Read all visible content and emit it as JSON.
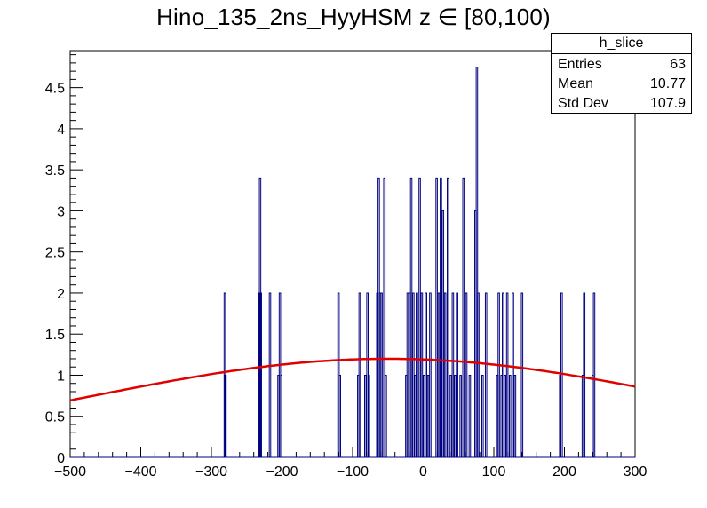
{
  "title": "Hino_135_2ns_HyyHSM z  ∈ [80,100)",
  "stats": {
    "name": "h_slice",
    "rows": [
      {
        "label": "Entries",
        "value": "63"
      },
      {
        "label": "Mean",
        "value": "10.77"
      },
      {
        "label": "Std Dev",
        "value": "107.9"
      }
    ]
  },
  "chart_data": {
    "type": "histogram",
    "xlim": [
      -500,
      300
    ],
    "ylim": [
      0,
      4.95
    ],
    "x_ticks": [
      -500,
      -400,
      -300,
      -200,
      -100,
      0,
      100,
      200,
      300
    ],
    "x_tick_labels": [
      "−500",
      "−400",
      "−300",
      "−200",
      "−100",
      "0",
      "100",
      "200",
      "300"
    ],
    "y_ticks": [
      0,
      0.5,
      1,
      1.5,
      2,
      2.5,
      3,
      3.5,
      4,
      4.5
    ],
    "y_tick_labels": [
      "0",
      "0.5",
      "1",
      "1.5",
      "2",
      "2.5",
      "3",
      "3.5",
      "4",
      "4.5"
    ],
    "histogram_color": "#000080",
    "fit_color": "#e00000",
    "bin_width": 2,
    "bins": [
      {
        "x": -282,
        "y": 2
      },
      {
        "x": -281,
        "y": 1
      },
      {
        "x": -233,
        "y": 2
      },
      {
        "x": -232,
        "y": 3.4
      },
      {
        "x": -231,
        "y": 2
      },
      {
        "x": -218,
        "y": 2
      },
      {
        "x": -206,
        "y": 1
      },
      {
        "x": -204,
        "y": 2
      },
      {
        "x": -202,
        "y": 1
      },
      {
        "x": -121,
        "y": 2
      },
      {
        "x": -119,
        "y": 1
      },
      {
        "x": -93,
        "y": 1
      },
      {
        "x": -91,
        "y": 2
      },
      {
        "x": -83,
        "y": 1
      },
      {
        "x": -80,
        "y": 2
      },
      {
        "x": -78,
        "y": 1
      },
      {
        "x": -66,
        "y": 2
      },
      {
        "x": -64,
        "y": 3.4
      },
      {
        "x": -62,
        "y": 2
      },
      {
        "x": -60,
        "y": 2
      },
      {
        "x": -56,
        "y": 3.4
      },
      {
        "x": -54,
        "y": 1
      },
      {
        "x": -25,
        "y": 1
      },
      {
        "x": -23,
        "y": 2
      },
      {
        "x": -20,
        "y": 2
      },
      {
        "x": -18,
        "y": 3.4
      },
      {
        "x": -15,
        "y": 2
      },
      {
        "x": -12,
        "y": 1
      },
      {
        "x": -10,
        "y": 2
      },
      {
        "x": -6,
        "y": 3.4
      },
      {
        "x": -3,
        "y": 2
      },
      {
        "x": 0,
        "y": 1
      },
      {
        "x": 3,
        "y": 2
      },
      {
        "x": 6,
        "y": 1
      },
      {
        "x": 9,
        "y": 2
      },
      {
        "x": 18,
        "y": 3.4
      },
      {
        "x": 21,
        "y": 2
      },
      {
        "x": 24,
        "y": 3.4
      },
      {
        "x": 27,
        "y": 3
      },
      {
        "x": 30,
        "y": 2
      },
      {
        "x": 34,
        "y": 3.4
      },
      {
        "x": 38,
        "y": 1
      },
      {
        "x": 41,
        "y": 2
      },
      {
        "x": 44,
        "y": 1
      },
      {
        "x": 47,
        "y": 2
      },
      {
        "x": 52,
        "y": 1
      },
      {
        "x": 56,
        "y": 3.4
      },
      {
        "x": 60,
        "y": 2
      },
      {
        "x": 65,
        "y": 1
      },
      {
        "x": 73,
        "y": 3
      },
      {
        "x": 75,
        "y": 4.75
      },
      {
        "x": 77,
        "y": 2
      },
      {
        "x": 83,
        "y": 1
      },
      {
        "x": 88,
        "y": 2
      },
      {
        "x": 104,
        "y": 1
      },
      {
        "x": 106,
        "y": 2
      },
      {
        "x": 110,
        "y": 1
      },
      {
        "x": 112,
        "y": 2
      },
      {
        "x": 115,
        "y": 1
      },
      {
        "x": 118,
        "y": 2
      },
      {
        "x": 122,
        "y": 1
      },
      {
        "x": 126,
        "y": 2
      },
      {
        "x": 129,
        "y": 1
      },
      {
        "x": 139,
        "y": 2
      },
      {
        "x": 193,
        "y": 1
      },
      {
        "x": 195,
        "y": 2
      },
      {
        "x": 225,
        "y": 1
      },
      {
        "x": 227,
        "y": 2
      },
      {
        "x": 239,
        "y": 1
      },
      {
        "x": 241,
        "y": 2
      }
    ],
    "fit": {
      "type": "gaussian",
      "peak": 1.2,
      "mean": -50,
      "sigma": 430
    }
  }
}
